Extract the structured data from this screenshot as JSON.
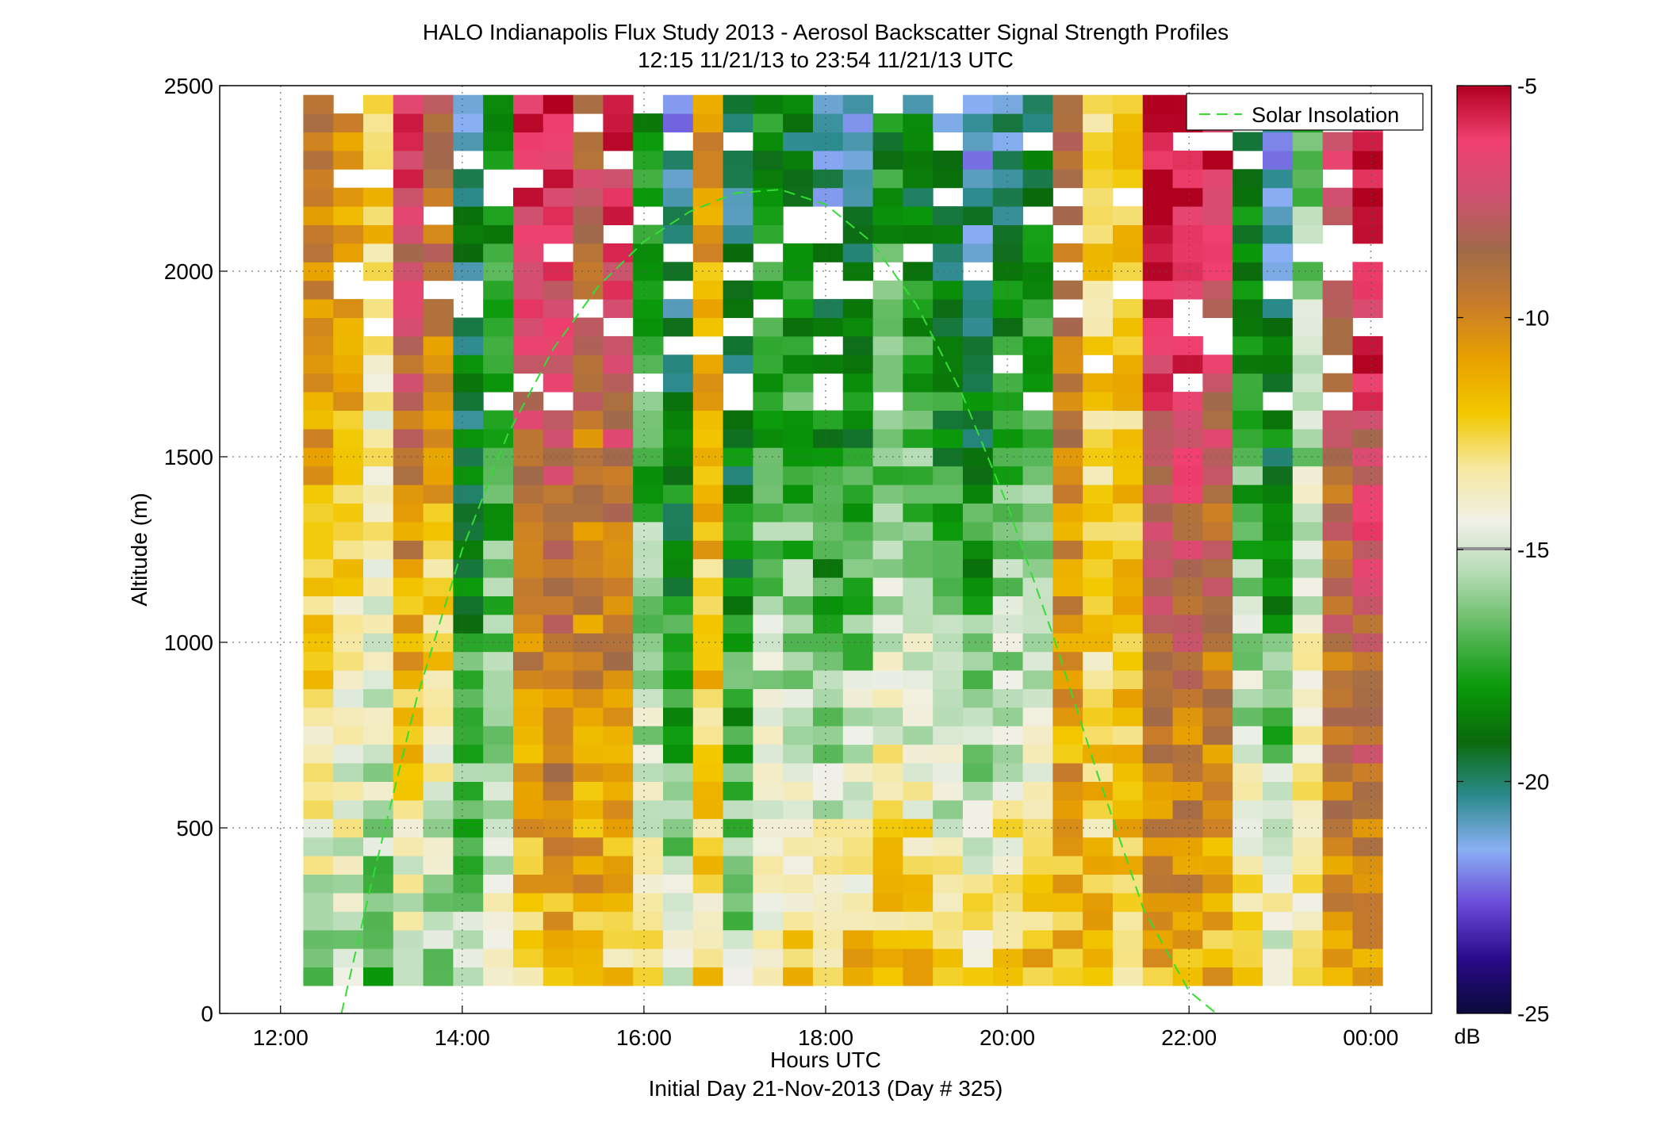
{
  "chart_data": {
    "type": "heatmap",
    "title": "HALO Indianapolis Flux Study 2013 - Aerosol Backscatter Signal Strength Profiles",
    "subtitle": "12:15 11/21/13 to 23:54 11/21/13  UTC",
    "xlabel": "Hours UTC",
    "xlabel2": "Initial Day 21-Nov-2013 (Day # 325)",
    "ylabel": "Altitude (m)",
    "xlim": [
      11.33,
      24.67
    ],
    "ylim": [
      0,
      2500
    ],
    "x_ticks": [
      12,
      14,
      16,
      18,
      20,
      22,
      24
    ],
    "x_tick_labels": [
      "12:00",
      "14:00",
      "16:00",
      "18:00",
      "20:00",
      "22:00",
      "00:00"
    ],
    "y_ticks": [
      0,
      500,
      1000,
      1500,
      2000,
      2500
    ],
    "y_tick_labels": [
      "0",
      "500",
      "1000",
      "1500",
      "2000",
      "2500"
    ],
    "grid": true,
    "legend": {
      "position": "top-right",
      "entries": [
        "Solar Insolation"
      ]
    },
    "colorbar": {
      "label": "dB",
      "range": [
        -25,
        -5
      ],
      "ticks": [
        -5,
        -10,
        -15,
        -20,
        -25
      ],
      "tick_labels": [
        "-5",
        "-10",
        "-15",
        "-20",
        "-25"
      ],
      "stops": [
        "#0a0a3a",
        "#2a0a8a",
        "#6a4ad8",
        "#8ab0f4",
        "#2a8a8a",
        "#0a6a0a",
        "#0a9a0a",
        "#5ab85a",
        "#b0dab0",
        "#f0f0e8",
        "#f6e8a0",
        "#f2c800",
        "#e8a000",
        "#c87c2a",
        "#a06a4a",
        "#d05070",
        "#f04070",
        "#b00020"
      ]
    },
    "series": [
      {
        "name": "Solar Insolation",
        "type": "line",
        "color": "#33dd33",
        "x": [
          12.67,
          13,
          13.5,
          14,
          14.5,
          15,
          15.5,
          16,
          16.5,
          17,
          17.5,
          18,
          18.5,
          19,
          19.5,
          20,
          20.5,
          21,
          21.5,
          22,
          22.3
        ],
        "y": [
          0,
          350,
          850,
          1250,
          1560,
          1790,
          1960,
          2080,
          2160,
          2210,
          2220,
          2180,
          2080,
          1910,
          1670,
          1370,
          1020,
          640,
          280,
          60,
          0
        ]
      }
    ],
    "heatmap": {
      "x_start": 12.25,
      "x_step": 0.33,
      "y_start": 75,
      "y_step": 50,
      "z_units": "dB",
      "value_range": [
        -25,
        -5
      ],
      "columns": [
        {
          "time": "12:15",
          "bottom": -16,
          "top": -9
        },
        {
          "time": "12:35",
          "bottom": -16,
          "top": -10
        },
        {
          "time": "12:55",
          "bottom": -17,
          "top": -12
        },
        {
          "time": "13:15",
          "bottom": -16,
          "top": -6
        },
        {
          "time": "13:35",
          "bottom": -17,
          "top": -8
        },
        {
          "time": "13:55",
          "bottom": -15,
          "top": -21
        },
        {
          "time": "14:15",
          "bottom": -14,
          "top": -19
        },
        {
          "time": "14:35",
          "bottom": -13,
          "top": -6
        },
        {
          "time": "14:55",
          "bottom": -12,
          "top": -6
        },
        {
          "time": "15:15",
          "bottom": -12,
          "top": -8
        },
        {
          "time": "15:35",
          "bottom": -13,
          "top": -6
        },
        {
          "time": "15:55",
          "bottom": -13,
          "top": -19
        },
        {
          "time": "16:15",
          "bottom": -14,
          "top": -22
        },
        {
          "time": "16:35",
          "bottom": -13,
          "top": -11
        },
        {
          "time": "16:55",
          "bottom": -15,
          "top": -21
        },
        {
          "time": "17:15",
          "bottom": -13,
          "top": -19
        },
        {
          "time": "17:35",
          "bottom": -12,
          "top": -20
        },
        {
          "time": "17:55",
          "bottom": -12,
          "top": -22
        },
        {
          "time": "18:15",
          "bottom": -11,
          "top": -22
        },
        {
          "time": "18:35",
          "bottom": -11,
          "top": -19
        },
        {
          "time": "18:55",
          "bottom": -11,
          "top": -20
        },
        {
          "time": "19:15",
          "bottom": -12,
          "top": -21
        },
        {
          "time": "19:35",
          "bottom": -12,
          "top": -22
        },
        {
          "time": "19:55",
          "bottom": -11,
          "top": -21
        },
        {
          "time": "20:15",
          "bottom": -11,
          "top": -20
        },
        {
          "time": "20:35",
          "bottom": -12,
          "top": -9
        },
        {
          "time": "20:55",
          "bottom": -12,
          "top": -13
        },
        {
          "time": "21:15",
          "bottom": -12,
          "top": -12
        },
        {
          "time": "21:35",
          "bottom": -12,
          "top": -5
        },
        {
          "time": "21:55",
          "bottom": -12,
          "top": -5
        },
        {
          "time": "22:15",
          "bottom": -12,
          "top": -6
        },
        {
          "time": "22:35",
          "bottom": -12,
          "top": -20
        },
        {
          "time": "22:55",
          "bottom": -13,
          "top": -22
        },
        {
          "time": "23:15",
          "bottom": -12,
          "top": -17
        },
        {
          "time": "23:35",
          "bottom": -11,
          "top": -7
        },
        {
          "time": "23:54",
          "bottom": -11,
          "top": -5
        }
      ]
    }
  }
}
